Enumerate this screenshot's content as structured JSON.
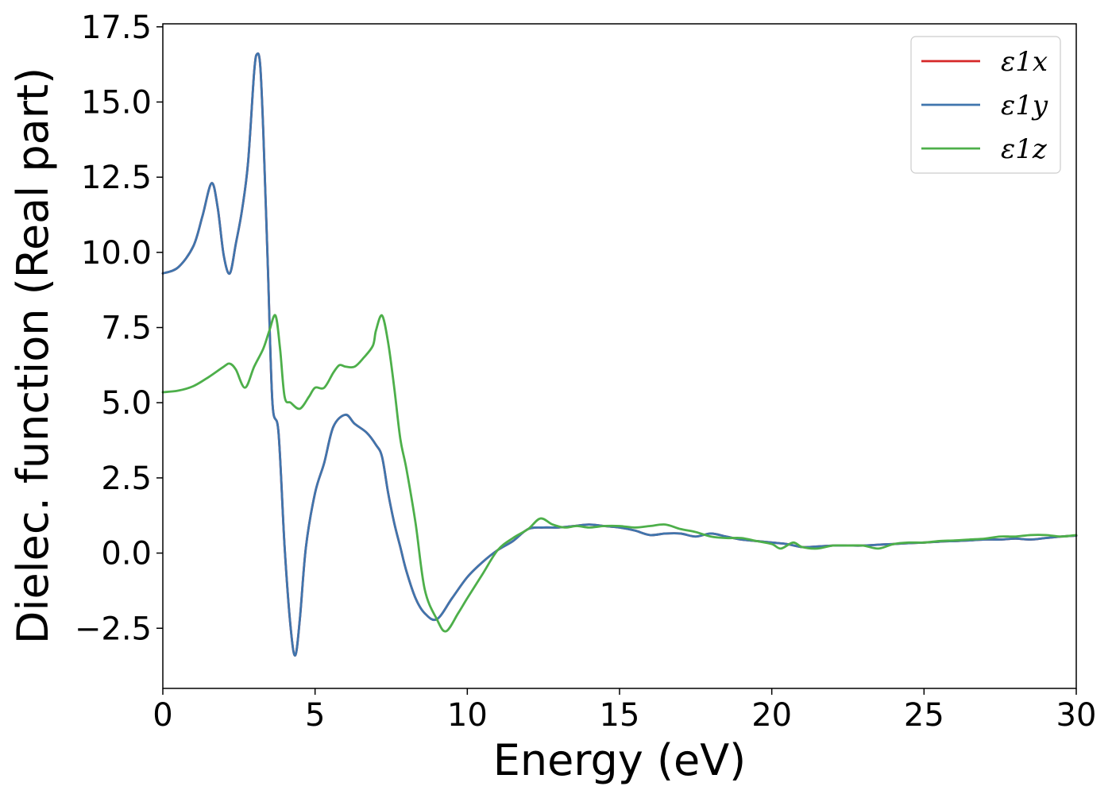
{
  "chart_data": {
    "type": "line",
    "xlabel": "Energy (eV)",
    "ylabel": "Dielec. function (Real part)",
    "xlim": [
      0,
      30
    ],
    "ylim": [
      -4.5,
      17.6
    ],
    "xticks": [
      0,
      5,
      10,
      15,
      20,
      25,
      30
    ],
    "xtick_labels": [
      "0",
      "5",
      "10",
      "15",
      "20",
      "25",
      "30"
    ],
    "yticks": [
      -2.5,
      0.0,
      2.5,
      5.0,
      7.5,
      10.0,
      12.5,
      15.0,
      17.5
    ],
    "ytick_labels": [
      "−2.5",
      "0.0",
      "2.5",
      "5.0",
      "7.5",
      "10.0",
      "12.5",
      "15.0",
      "17.5"
    ],
    "grid": false,
    "legend_position": "top-right",
    "series": [
      {
        "name": "ε1x",
        "color": "#d62728",
        "x": [
          0,
          0.5,
          1.0,
          1.3,
          1.6,
          1.8,
          2.0,
          2.2,
          2.4,
          2.6,
          2.8,
          3.0,
          3.1,
          3.2,
          3.3,
          3.45,
          3.6,
          3.8,
          4.0,
          4.2,
          4.35,
          4.5,
          4.7,
          5.0,
          5.3,
          5.6,
          6.0,
          6.3,
          6.7,
          7.0,
          7.2,
          7.4,
          7.6,
          7.8,
          8.0,
          8.3,
          8.6,
          9.0,
          9.5,
          10.0,
          10.5,
          11.0,
          11.5,
          12.0,
          12.5,
          13.0,
          13.5,
          14.0,
          14.5,
          15.0,
          15.5,
          16.0,
          16.5,
          17.0,
          17.5,
          18.0,
          18.5,
          19.0,
          19.5,
          20.0,
          20.5,
          21.0,
          21.5,
          22.0,
          22.5,
          23.0,
          23.5,
          24.0,
          24.5,
          25.0,
          25.5,
          26.0,
          26.5,
          27.0,
          27.5,
          28.0,
          28.5,
          29.0,
          29.5,
          30.0
        ],
        "y": [
          9.3,
          9.5,
          10.2,
          11.2,
          12.3,
          11.5,
          9.9,
          9.3,
          10.3,
          11.4,
          13.0,
          16.0,
          16.6,
          16.2,
          14.0,
          9.5,
          5.0,
          4.0,
          0.2,
          -2.5,
          -3.4,
          -2.2,
          0.2,
          2.0,
          3.0,
          4.2,
          4.6,
          4.3,
          4.0,
          3.6,
          3.2,
          2.0,
          1.0,
          0.2,
          -0.6,
          -1.5,
          -2.0,
          -2.2,
          -1.5,
          -0.8,
          -0.3,
          0.1,
          0.4,
          0.8,
          0.85,
          0.85,
          0.9,
          0.95,
          0.9,
          0.85,
          0.75,
          0.6,
          0.65,
          0.65,
          0.55,
          0.65,
          0.55,
          0.45,
          0.4,
          0.35,
          0.3,
          0.2,
          0.22,
          0.25,
          0.25,
          0.25,
          0.28,
          0.3,
          0.33,
          0.35,
          0.38,
          0.4,
          0.42,
          0.45,
          0.45,
          0.48,
          0.45,
          0.5,
          0.55,
          0.58
        ]
      },
      {
        "name": "ε1y",
        "color": "#3f75ad",
        "x": [
          0,
          0.5,
          1.0,
          1.3,
          1.6,
          1.8,
          2.0,
          2.2,
          2.4,
          2.6,
          2.8,
          3.0,
          3.1,
          3.2,
          3.3,
          3.45,
          3.6,
          3.8,
          4.0,
          4.2,
          4.35,
          4.5,
          4.7,
          5.0,
          5.3,
          5.6,
          6.0,
          6.3,
          6.7,
          7.0,
          7.2,
          7.4,
          7.6,
          7.8,
          8.0,
          8.3,
          8.6,
          9.0,
          9.5,
          10.0,
          10.5,
          11.0,
          11.5,
          12.0,
          12.5,
          13.0,
          13.5,
          14.0,
          14.5,
          15.0,
          15.5,
          16.0,
          16.5,
          17.0,
          17.5,
          18.0,
          18.5,
          19.0,
          19.5,
          20.0,
          20.5,
          21.0,
          21.5,
          22.0,
          22.5,
          23.0,
          23.5,
          24.0,
          24.5,
          25.0,
          25.5,
          26.0,
          26.5,
          27.0,
          27.5,
          28.0,
          28.5,
          29.0,
          29.5,
          30.0
        ],
        "y": [
          9.3,
          9.5,
          10.2,
          11.2,
          12.3,
          11.5,
          9.9,
          9.3,
          10.3,
          11.4,
          13.0,
          16.0,
          16.6,
          16.2,
          14.0,
          9.5,
          5.0,
          4.0,
          0.2,
          -2.5,
          -3.4,
          -2.2,
          0.2,
          2.0,
          3.0,
          4.2,
          4.6,
          4.3,
          4.0,
          3.6,
          3.2,
          2.0,
          1.0,
          0.2,
          -0.6,
          -1.5,
          -2.0,
          -2.2,
          -1.5,
          -0.8,
          -0.3,
          0.1,
          0.4,
          0.8,
          0.85,
          0.85,
          0.9,
          0.95,
          0.9,
          0.85,
          0.75,
          0.6,
          0.65,
          0.65,
          0.55,
          0.65,
          0.55,
          0.45,
          0.4,
          0.35,
          0.3,
          0.2,
          0.22,
          0.25,
          0.25,
          0.25,
          0.28,
          0.3,
          0.33,
          0.35,
          0.38,
          0.4,
          0.42,
          0.45,
          0.45,
          0.48,
          0.45,
          0.5,
          0.55,
          0.58
        ]
      },
      {
        "name": "ε1z",
        "color": "#4daf4a",
        "x": [
          0,
          0.5,
          1.0,
          1.5,
          2.0,
          2.2,
          2.4,
          2.7,
          3.0,
          3.3,
          3.5,
          3.7,
          3.85,
          4.0,
          4.2,
          4.5,
          4.8,
          5.0,
          5.3,
          5.6,
          5.8,
          6.0,
          6.3,
          6.6,
          6.9,
          7.0,
          7.2,
          7.4,
          7.6,
          7.8,
          8.0,
          8.3,
          8.6,
          9.0,
          9.3,
          9.7,
          10.0,
          10.5,
          11.0,
          11.5,
          12.0,
          12.4,
          12.8,
          13.2,
          13.6,
          14.0,
          14.5,
          15.0,
          15.5,
          16.0,
          16.5,
          17.0,
          17.5,
          18.0,
          18.5,
          19.0,
          19.5,
          20.0,
          20.3,
          20.7,
          21.0,
          21.5,
          22.0,
          22.5,
          23.0,
          23.5,
          24.0,
          24.5,
          25.0,
          25.5,
          26.0,
          26.5,
          27.0,
          27.5,
          28.0,
          28.5,
          29.0,
          29.5,
          30.0
        ],
        "y": [
          5.35,
          5.4,
          5.55,
          5.85,
          6.2,
          6.3,
          6.1,
          5.5,
          6.2,
          6.8,
          7.4,
          7.9,
          6.8,
          5.2,
          5.0,
          4.8,
          5.2,
          5.5,
          5.5,
          6.0,
          6.25,
          6.2,
          6.2,
          6.5,
          6.9,
          7.4,
          7.9,
          7.0,
          5.5,
          3.8,
          2.8,
          1.0,
          -1.2,
          -2.2,
          -2.6,
          -2.0,
          -1.5,
          -0.7,
          0.1,
          0.5,
          0.8,
          1.15,
          0.95,
          0.85,
          0.9,
          0.85,
          0.9,
          0.9,
          0.85,
          0.9,
          0.95,
          0.8,
          0.7,
          0.55,
          0.5,
          0.5,
          0.4,
          0.3,
          0.15,
          0.35,
          0.2,
          0.15,
          0.25,
          0.25,
          0.25,
          0.15,
          0.3,
          0.35,
          0.35,
          0.4,
          0.42,
          0.45,
          0.48,
          0.55,
          0.55,
          0.6,
          0.6,
          0.55,
          0.6
        ]
      }
    ]
  }
}
